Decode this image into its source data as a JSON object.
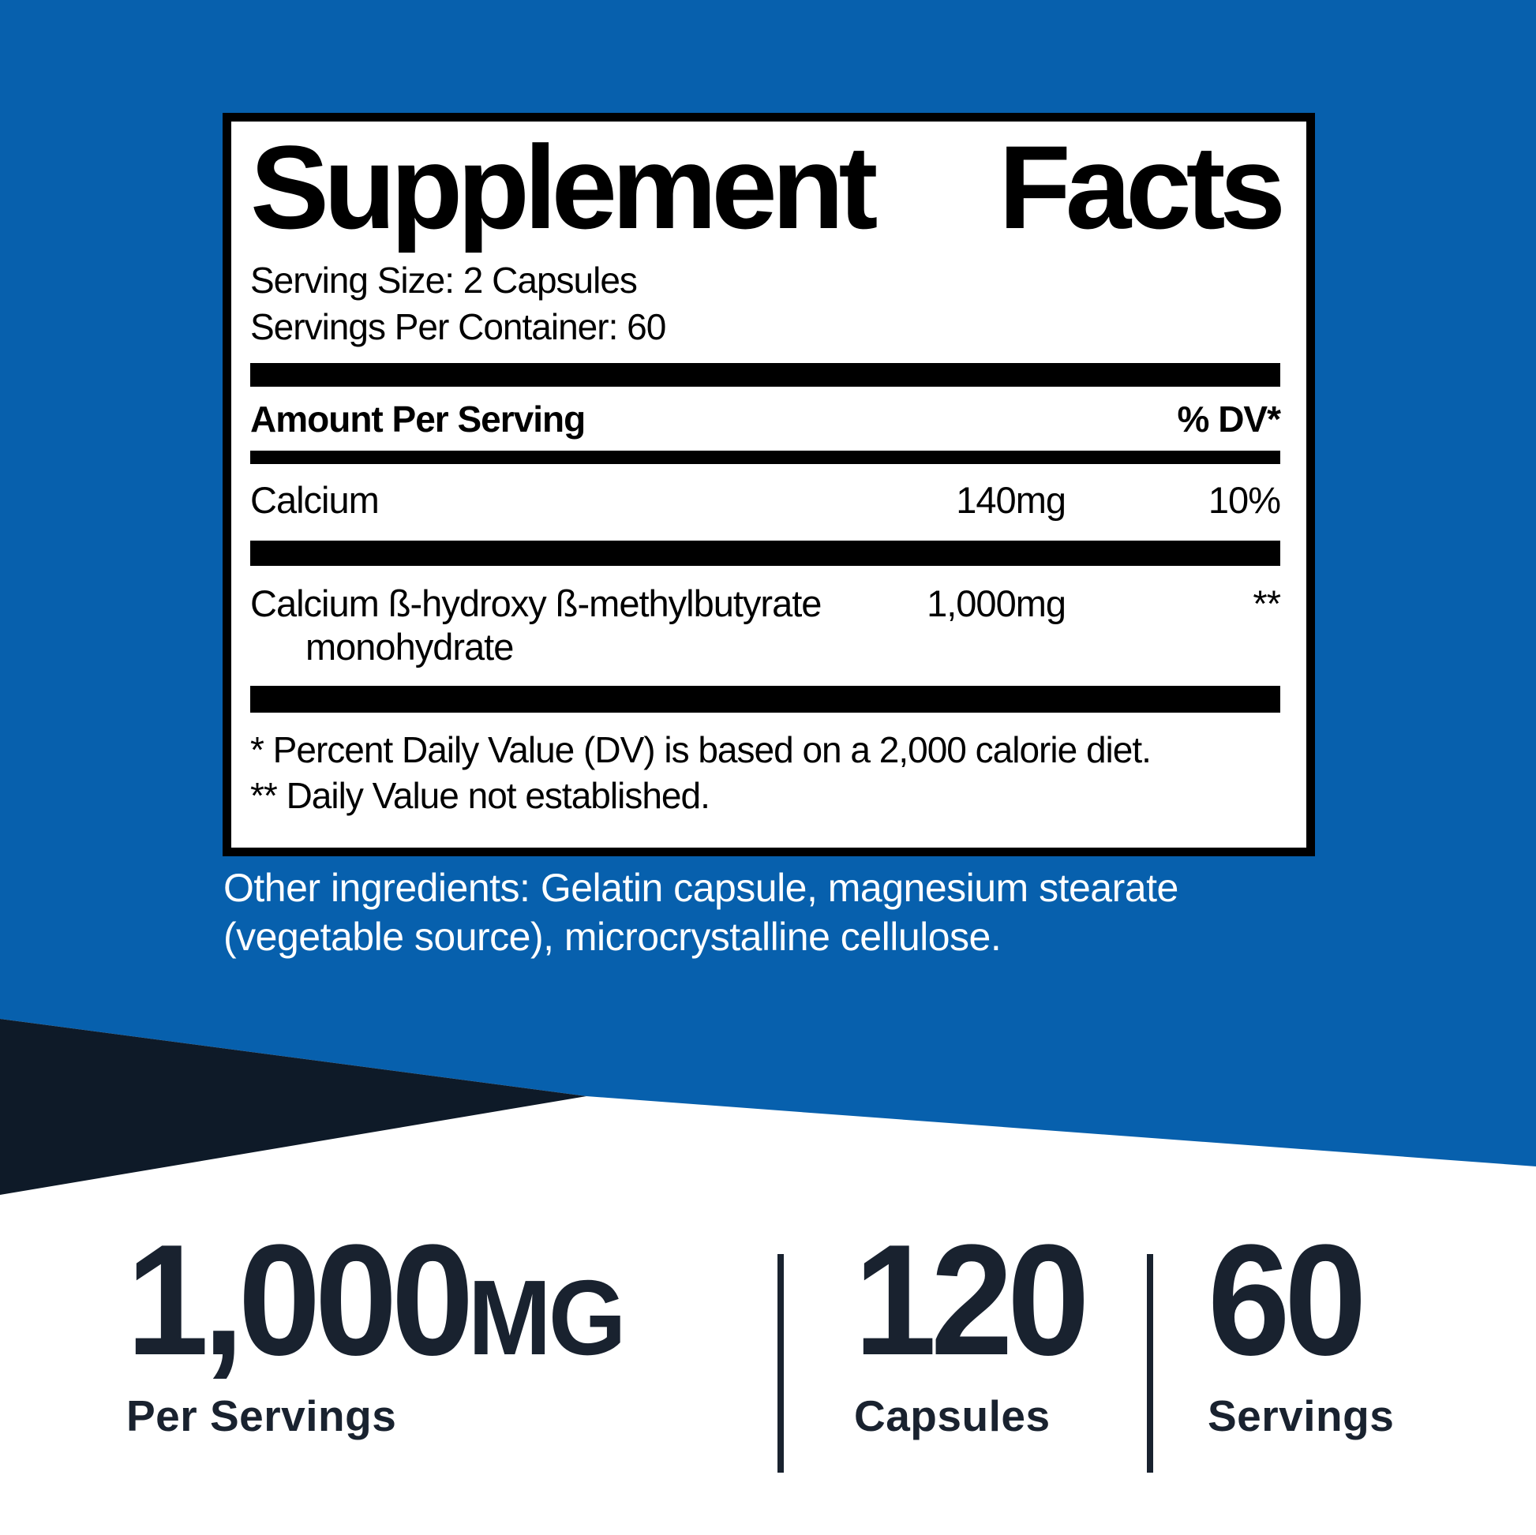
{
  "colors": {
    "blue_background": "#0760ad",
    "navy_wedge": "#0e1a28",
    "navy_text": "#19222f",
    "panel_border": "#000000",
    "panel_background": "#ffffff",
    "ingredients_text": "#ffffff"
  },
  "facts": {
    "title": "Supplement Facts",
    "title_left": "Supplement",
    "title_right": "Facts",
    "serving_size": "Serving Size: 2 Capsules",
    "servings_per_container": "Servings Per Container: 60",
    "amount_header": "Amount Per Serving",
    "dv_header": "% DV*",
    "rows": [
      {
        "name": "Calcium",
        "amount": "140mg",
        "dv": "10%"
      },
      {
        "name": "Calcium ß-hydroxy ß-methylbutyrate",
        "name_line2": "monohydrate",
        "amount": "1,000mg",
        "dv": "**"
      }
    ],
    "footnote1": "* Percent Daily Value (DV) is based on a 2,000 calorie diet.",
    "footnote2": "** Daily Value not established."
  },
  "other_ingredients": {
    "line1": "Other ingredients: Gelatin capsule, magnesium stearate",
    "line2": "(vegetable source), microcrystalline cellulose."
  },
  "highlights": [
    {
      "value": "1,000",
      "unit": "MG",
      "label": "Per Servings"
    },
    {
      "value": "120",
      "unit": "",
      "label": "Capsules"
    },
    {
      "value": "60",
      "unit": "",
      "label": "Servings"
    }
  ]
}
